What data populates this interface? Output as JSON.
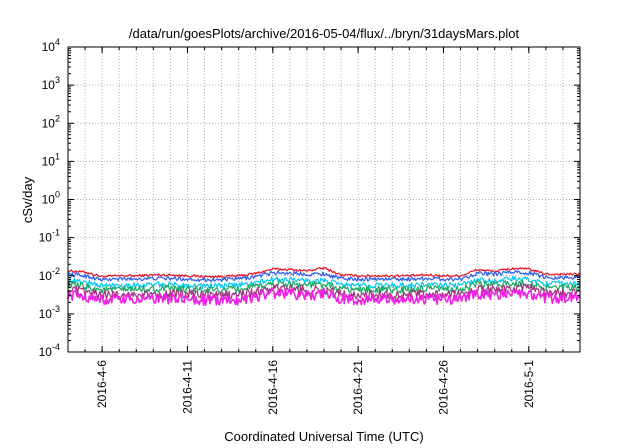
{
  "chart_data": {
    "type": "line",
    "title": "/data/run/goesPlots/archive/2016-05-04/flux/../bryn/31daysMars.plot",
    "xlabel": "Coordinated Universal Time (UTC)",
    "ylabel": "cSv/day",
    "yscale": "log",
    "ylim": [
      0.0001,
      10000
    ],
    "xlim": [
      "2016-04-04",
      "2016-05-04"
    ],
    "grid": true,
    "y_ticks": [
      {
        "mant": "10",
        "exp": "-4",
        "value": 0.0001
      },
      {
        "mant": "10",
        "exp": "-3",
        "value": 0.001
      },
      {
        "mant": "10",
        "exp": "-2",
        "value": 0.01
      },
      {
        "mant": "10",
        "exp": "-1",
        "value": 0.1
      },
      {
        "mant": "10",
        "exp": "0",
        "value": 1
      },
      {
        "mant": "10",
        "exp": "1",
        "value": 10
      },
      {
        "mant": "10",
        "exp": "2",
        "value": 100
      },
      {
        "mant": "10",
        "exp": "3",
        "value": 1000
      },
      {
        "mant": "10",
        "exp": "4",
        "value": 10000
      }
    ],
    "x_ticks": [
      "2016-4-6",
      "2016-4-11",
      "2016-4-16",
      "2016-4-21",
      "2016-4-26",
      "2016-5-1"
    ],
    "x": [
      "2016-04-04",
      "2016-04-05",
      "2016-04-06",
      "2016-04-07",
      "2016-04-08",
      "2016-04-09",
      "2016-04-10",
      "2016-04-11",
      "2016-04-12",
      "2016-04-13",
      "2016-04-14",
      "2016-04-15",
      "2016-04-16",
      "2016-04-17",
      "2016-04-18",
      "2016-04-19",
      "2016-04-20",
      "2016-04-21",
      "2016-04-22",
      "2016-04-23",
      "2016-04-24",
      "2016-04-25",
      "2016-04-26",
      "2016-04-27",
      "2016-04-28",
      "2016-04-29",
      "2016-04-30",
      "2016-05-01",
      "2016-05-02",
      "2016-05-03",
      "2016-05-04"
    ],
    "series": [
      {
        "color": "#e8101e",
        "values": [
          0.0135,
          0.0125,
          0.0095,
          0.01,
          0.01,
          0.0105,
          0.0105,
          0.01,
          0.0095,
          0.0095,
          0.01,
          0.0115,
          0.015,
          0.0145,
          0.0135,
          0.016,
          0.0105,
          0.01,
          0.01,
          0.01,
          0.01,
          0.0105,
          0.01,
          0.01,
          0.0145,
          0.013,
          0.0155,
          0.015,
          0.011,
          0.011,
          0.011
        ]
      },
      {
        "color": "#2a5cf0",
        "values": [
          0.011,
          0.01,
          0.0078,
          0.0082,
          0.0083,
          0.0085,
          0.0085,
          0.0082,
          0.0079,
          0.0078,
          0.0083,
          0.0095,
          0.012,
          0.0118,
          0.011,
          0.0112,
          0.0085,
          0.0082,
          0.0082,
          0.0082,
          0.0082,
          0.0086,
          0.0082,
          0.0082,
          0.0118,
          0.0108,
          0.0125,
          0.012,
          0.009,
          0.009,
          0.009
        ]
      },
      {
        "color": "#00c8f0",
        "values": [
          0.0075,
          0.0068,
          0.0055,
          0.0056,
          0.0057,
          0.0058,
          0.0058,
          0.0056,
          0.0054,
          0.0054,
          0.0057,
          0.0065,
          0.008,
          0.0079,
          0.0074,
          0.0075,
          0.0058,
          0.0056,
          0.0056,
          0.0056,
          0.0056,
          0.0059,
          0.0056,
          0.0056,
          0.0079,
          0.0073,
          0.0083,
          0.008,
          0.0062,
          0.0062,
          0.0062
        ]
      },
      {
        "color": "#1aa860",
        "values": [
          0.0058,
          0.0052,
          0.0042,
          0.0043,
          0.0044,
          0.0045,
          0.0045,
          0.0043,
          0.0042,
          0.0041,
          0.0044,
          0.005,
          0.0062,
          0.0061,
          0.0057,
          0.0058,
          0.0045,
          0.0043,
          0.0043,
          0.0043,
          0.0043,
          0.0045,
          0.0043,
          0.0043,
          0.0061,
          0.0056,
          0.0064,
          0.0062,
          0.0048,
          0.0048,
          0.0048
        ]
      },
      {
        "color": "#a0307a",
        "values": [
          0.0042,
          0.0038,
          0.0031,
          0.0032,
          0.0032,
          0.0033,
          0.0033,
          0.0032,
          0.0031,
          0.003,
          0.0032,
          0.0037,
          0.0046,
          0.0045,
          0.0042,
          0.0043,
          0.0033,
          0.0032,
          0.0032,
          0.0032,
          0.0032,
          0.0033,
          0.0032,
          0.0032,
          0.0045,
          0.0041,
          0.0047,
          0.0046,
          0.0035,
          0.0035,
          0.0035
        ]
      },
      {
        "color": "#f020e6",
        "values": [
          0.0032,
          0.0029,
          0.0023,
          0.0024,
          0.0024,
          0.0025,
          0.0025,
          0.0024,
          0.0023,
          0.0023,
          0.0024,
          0.0028,
          0.0035,
          0.0034,
          0.0031,
          0.0032,
          0.0025,
          0.0024,
          0.0024,
          0.0024,
          0.0024,
          0.0025,
          0.0024,
          0.0024,
          0.0034,
          0.0031,
          0.0036,
          0.0034,
          0.0026,
          0.0026,
          0.0026
        ]
      }
    ]
  }
}
